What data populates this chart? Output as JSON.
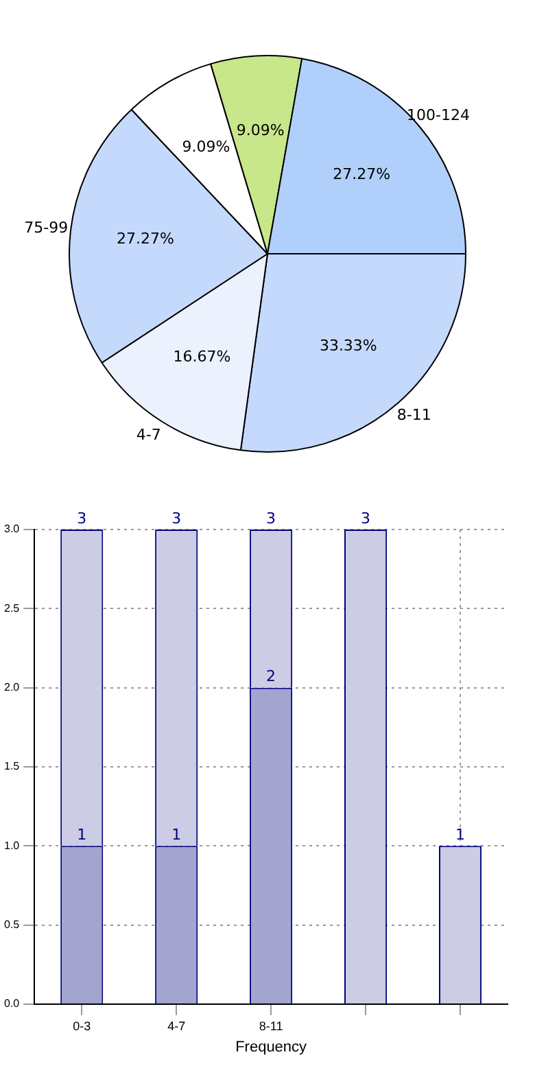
{
  "chart_data": [
    {
      "type": "pie",
      "categories": [
        "8-11",
        "4-7",
        "75-99",
        null,
        null,
        "100-124"
      ],
      "values": [
        33.33,
        16.67,
        27.27,
        9.09,
        9.09,
        27.27
      ],
      "value_labels": [
        "33.33%",
        "16.67%",
        "27.27%",
        "9.09%",
        "9.09%",
        "27.27%"
      ],
      "colors": [
        "#c5d9fd",
        "#ebf2fe",
        "#c5d9fd",
        "#ffffff",
        "#c8e68a",
        "#b0d0fb"
      ]
    },
    {
      "type": "bar",
      "categories": [
        "0-3",
        "4-7",
        "8-11",
        null,
        null
      ],
      "xlabel": "Frequency",
      "series": [
        {
          "color": "#a3a5cf",
          "values": [
            1,
            1,
            2,
            null,
            null
          ],
          "value_labels": [
            "1",
            "1",
            "2",
            null,
            null
          ]
        },
        {
          "color": "#cccce4",
          "values": [
            2,
            2,
            1,
            3,
            1
          ]
        }
      ],
      "stacked": true,
      "totals": [
        "3",
        "3",
        "3",
        "3",
        "1"
      ],
      "ylim": [
        0,
        3
      ],
      "yticks": [
        {
          "value": 0,
          "label": "0.0"
        },
        {
          "value": 0.5,
          "label": "0.5"
        },
        {
          "value": 1,
          "label": "1.0"
        },
        {
          "value": 1.5,
          "label": "1.5"
        },
        {
          "value": 2,
          "label": "2.0"
        },
        {
          "value": 2.5,
          "label": "2.5"
        },
        {
          "value": 3,
          "label": "3.0"
        }
      ],
      "grid": true,
      "legend": false
    }
  ]
}
